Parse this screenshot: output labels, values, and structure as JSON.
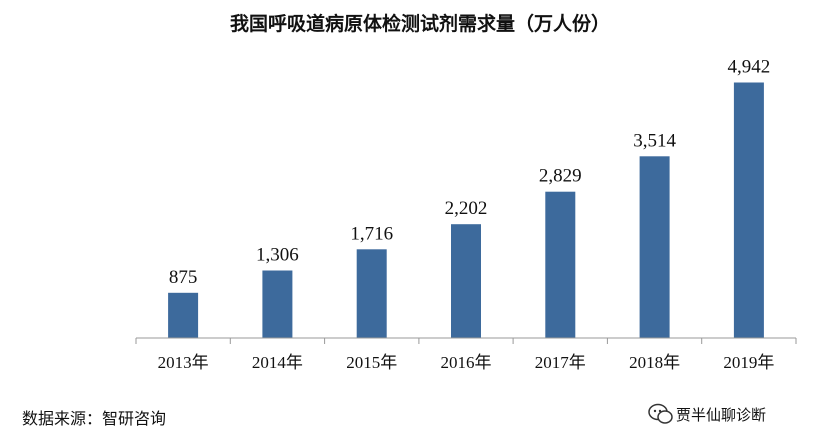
{
  "chart_data": {
    "type": "bar",
    "title": "我国呼吸道病原体检测试剂需求量（万人份）",
    "categories": [
      "2013年",
      "2014年",
      "2015年",
      "2016年",
      "2017年",
      "2018年",
      "2019年"
    ],
    "values": [
      875,
      1306,
      1716,
      2202,
      2829,
      3514,
      4942
    ],
    "value_labels": [
      "875",
      "1,306",
      "1,716",
      "2,202",
      "2,829",
      "3,514",
      "4,942"
    ],
    "ylim": [
      0,
      5300
    ],
    "grid": false,
    "bar_color": "#3d6a9c"
  },
  "source": "数据来源：智研咨询",
  "watermark": "贾半仙聊诊断",
  "watermark_icon": "wechat-icon"
}
